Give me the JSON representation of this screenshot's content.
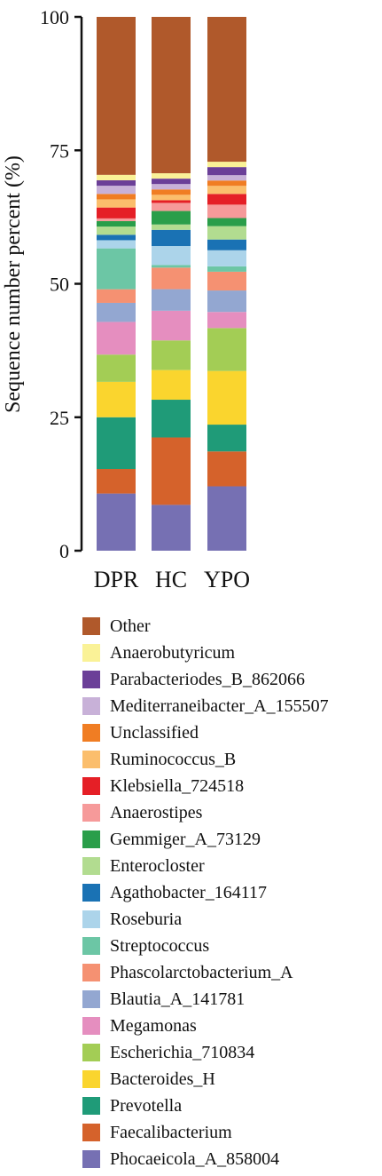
{
  "chart_data": {
    "type": "bar",
    "stacked": true,
    "categories": [
      "DPR",
      "HC",
      "YPO"
    ],
    "ylabel": "Sequence number percent (%)",
    "ylim": [
      0,
      100
    ],
    "yticks": [
      0,
      25,
      50,
      75,
      100
    ],
    "legend_position": "bottom",
    "series": [
      {
        "name": "Phocaeicola_A_858004",
        "color": "#7670b3",
        "values": [
          10.5,
          8.5,
          12.0
        ]
      },
      {
        "name": "Faecalibacterium",
        "color": "#d5622b",
        "values": [
          4.5,
          12.5,
          6.5
        ]
      },
      {
        "name": "Prevotella",
        "color": "#1f9b78",
        "values": [
          9.5,
          7.0,
          5.0
        ]
      },
      {
        "name": "Bacteroides_H",
        "color": "#fad52e",
        "values": [
          6.5,
          5.5,
          10.0
        ]
      },
      {
        "name": "Escherichia_710834",
        "color": "#a3cd55",
        "values": [
          5.0,
          5.5,
          8.0
        ]
      },
      {
        "name": "Megamonas",
        "color": "#e58ebf",
        "values": [
          6.0,
          5.5,
          3.0
        ]
      },
      {
        "name": "Blautia_A_141781",
        "color": "#93a7d1",
        "values": [
          3.5,
          4.0,
          4.0
        ]
      },
      {
        "name": "Phascolarctobacterium_A",
        "color": "#f59172",
        "values": [
          2.5,
          4.0,
          3.5
        ]
      },
      {
        "name": "Streptococcus",
        "color": "#6cc6a5",
        "values": [
          7.5,
          0.5,
          1.0
        ]
      },
      {
        "name": "Roseburia",
        "color": "#acd4ea",
        "values": [
          1.5,
          3.5,
          3.0
        ]
      },
      {
        "name": "Agathobacter_164117",
        "color": "#1a72b4",
        "values": [
          1.0,
          3.0,
          2.0
        ]
      },
      {
        "name": "Enterocloster",
        "color": "#b2dc90",
        "values": [
          1.5,
          1.0,
          2.5
        ]
      },
      {
        "name": "Gemmiger_A_73129",
        "color": "#2a9e4a",
        "values": [
          1.0,
          2.5,
          1.5
        ]
      },
      {
        "name": "Anaerostipes",
        "color": "#f69a9a",
        "values": [
          0.5,
          1.5,
          2.5
        ]
      },
      {
        "name": "Klebsiella_724518",
        "color": "#e51f26",
        "values": [
          2.0,
          0.5,
          2.0
        ]
      },
      {
        "name": "Ruminococcus_B",
        "color": "#fbbe6c",
        "values": [
          1.5,
          1.0,
          1.5
        ]
      },
      {
        "name": "Unclassified",
        "color": "#f07d23",
        "values": [
          1.0,
          1.0,
          1.0
        ]
      },
      {
        "name": "Mediterraneibacter_A_155507",
        "color": "#c8b1d8",
        "values": [
          1.5,
          1.0,
          1.0
        ]
      },
      {
        "name": "Parabacteriodes_B_862066",
        "color": "#6b3f98",
        "values": [
          1.0,
          1.0,
          1.5
        ]
      },
      {
        "name": "Anaerobutyricum",
        "color": "#faf297",
        "values": [
          1.0,
          1.0,
          1.0
        ]
      },
      {
        "name": "Other",
        "color": "#b0592b",
        "values": [
          29.0,
          29.0,
          27.0
        ]
      }
    ]
  }
}
